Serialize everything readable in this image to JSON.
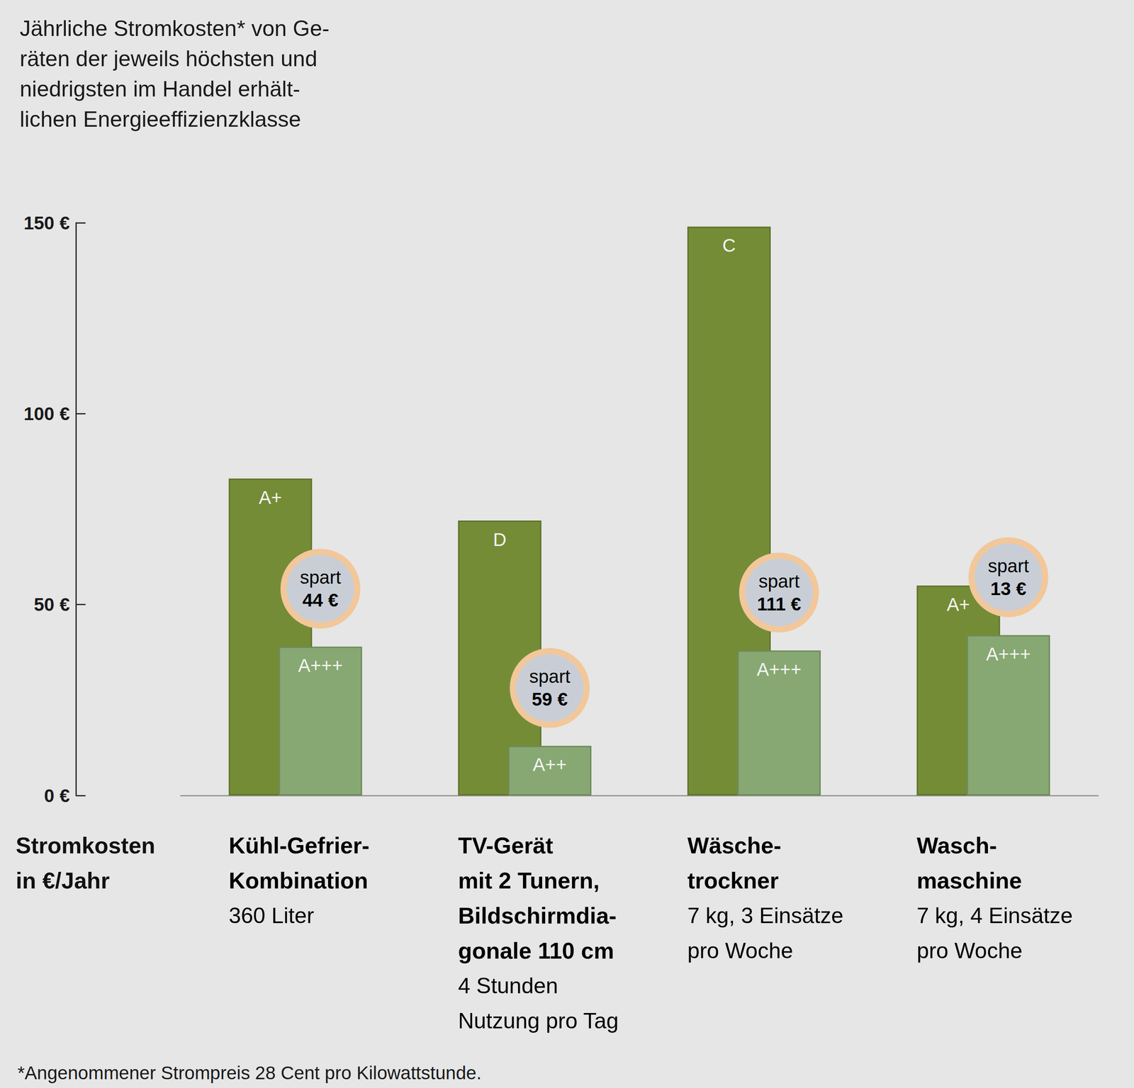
{
  "chart_data": {
    "type": "bar",
    "title": "Jährliche Stromkosten* von Ge-\nräten der jeweils höchsten und\nniedrigsten im Handel erhält-\nlichen Energieeffizienzklasse",
    "footnote": "*Angenommener Strompreis 28 Cent pro Kilowattstunde.",
    "y_label": "Stromkosten\nin €/Jahr",
    "categories": [
      "Kühl-Gefrier-\nKombination",
      "TV-Gerät\nmit 2 Tunern,\nBildschirmdia-\ngonale 110 cm",
      "Wäsche-\ntrockner",
      "Wasch-\nmaschine"
    ],
    "category_details": [
      "360 Liter",
      "4 Stunden\nNutzung pro Tag",
      "7 kg, 3 Einsätze\npro Woche",
      "7 kg, 4 Einsätze\npro Woche"
    ],
    "series": [
      {
        "color": "#758c36",
        "values": [
          83,
          72,
          149,
          55
        ],
        "class_labels": [
          "A+",
          "D",
          "C",
          "A+"
        ]
      },
      {
        "color": "#87a872",
        "values": [
          39,
          13,
          38,
          42
        ],
        "class_labels": [
          "A+++",
          "A++",
          "A+++",
          "A+++"
        ]
      }
    ],
    "savings": {
      "label": "spart",
      "values": [
        44,
        59,
        111,
        13
      ],
      "value_labels": [
        "44 €",
        "59 €",
        "111 €",
        "13 €"
      ]
    },
    "ylim": [
      0,
      150
    ],
    "yticks": [
      {
        "value": 0,
        "label": "0 €"
      },
      {
        "value": 50,
        "label": "50 €"
      },
      {
        "value": 100,
        "label": "100 €"
      },
      {
        "value": 150,
        "label": "150 €"
      }
    ],
    "grid": false
  }
}
